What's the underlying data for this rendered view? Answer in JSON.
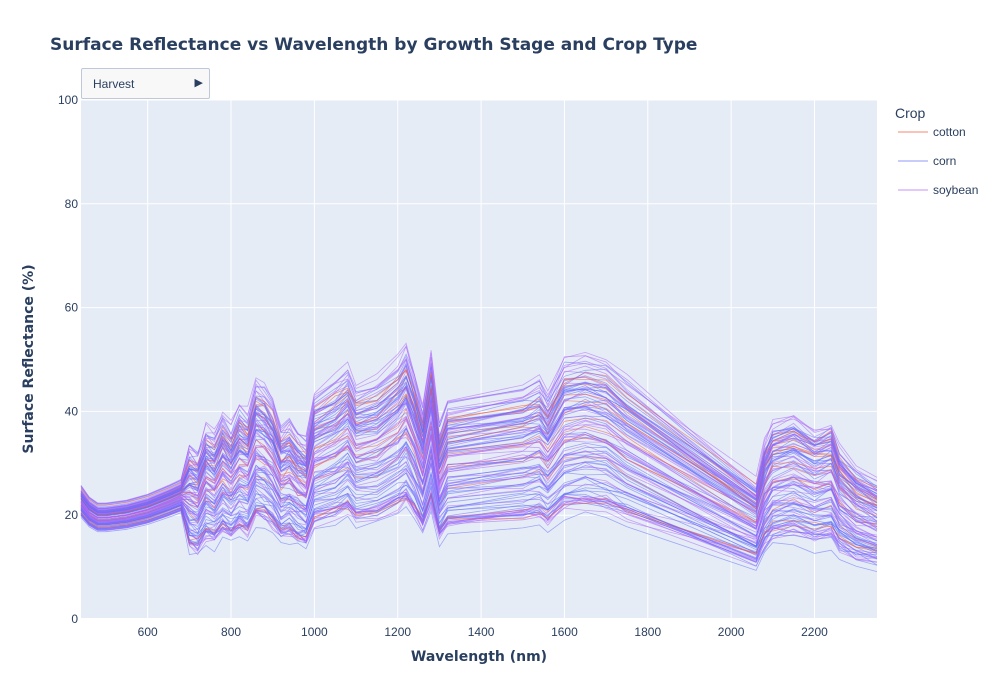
{
  "dropdown": {
    "selected": "Harvest",
    "arrow_icon": "triangle-right-icon"
  },
  "chart_data": {
    "type": "line",
    "title": "Surface Reflectance vs Wavelength by Growth Stage and Crop Type",
    "xlabel": "Wavelength (nm)",
    "ylabel": "Surface Reflectance (%)",
    "xlim": [
      440,
      2350
    ],
    "ylim": [
      0,
      100
    ],
    "x_ticks": [
      600,
      800,
      1000,
      1200,
      1400,
      1600,
      1800,
      2000,
      2200
    ],
    "y_ticks": [
      0,
      20,
      40,
      60,
      80,
      100
    ],
    "grid": true,
    "legend": {
      "title": "Crop",
      "placement": "top-right"
    },
    "background": "#e5ecf6",
    "series": [
      {
        "name": "cotton",
        "color": "#ef553b",
        "count": 14
      },
      {
        "name": "corn",
        "color": "#636efa",
        "count": 52
      },
      {
        "name": "soybean",
        "color": "#ab63fa",
        "count": 44
      }
    ],
    "wavelengths": [
      440,
      460,
      480,
      500,
      550,
      600,
      650,
      680,
      700,
      720,
      740,
      760,
      780,
      800,
      820,
      840,
      860,
      880,
      900,
      920,
      940,
      960,
      980,
      1000,
      1050,
      1080,
      1100,
      1150,
      1200,
      1220,
      1240,
      1260,
      1280,
      1300,
      1320,
      1500,
      1540,
      1560,
      1600,
      1650,
      1700,
      1750,
      2060,
      2080,
      2100,
      2150,
      2200,
      2240,
      2260,
      2300,
      2350
    ],
    "median_profile": [
      22,
      20,
      19,
      19,
      19.5,
      20.5,
      22,
      23,
      25,
      24,
      28,
      27,
      30,
      28,
      31,
      30,
      35,
      34,
      32,
      28,
      29,
      27,
      26,
      33,
      35,
      37,
      34,
      35,
      38,
      40,
      36,
      31,
      39,
      28,
      32,
      34,
      35,
      33,
      38,
      39,
      38,
      35,
      20,
      26,
      29,
      30,
      28,
      29,
      25,
      22,
      20
    ]
  }
}
